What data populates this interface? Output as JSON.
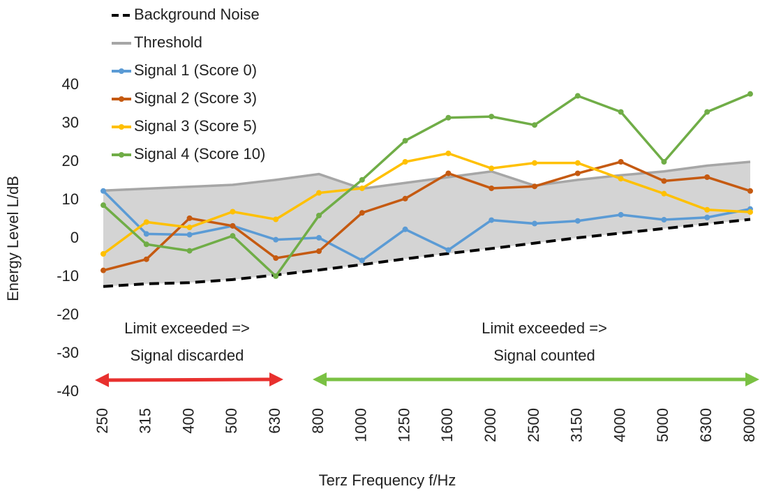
{
  "chart_data": {
    "type": "line",
    "x_label": "Terz Frequency f/Hz",
    "y_label": "Energy Level L/dB",
    "categories": [
      "250",
      "315",
      "400",
      "500",
      "630",
      "800",
      "1000",
      "1250",
      "1600",
      "2000",
      "2500",
      "3150",
      "4000",
      "5000",
      "6300",
      "8000"
    ],
    "ylim": [
      -40,
      40
    ],
    "yticks": [
      -40,
      -30,
      -20,
      -10,
      0,
      10,
      20,
      30,
      40
    ],
    "grid": false,
    "series": [
      {
        "name": "Background Noise",
        "color": "#000000",
        "dashed": true,
        "marker": false,
        "values": [
          -12.5,
          -11.8,
          -11.5,
          -10.7,
          -9.5,
          -8.2,
          -6.8,
          -5.3,
          -3.9,
          -2.6,
          -1.2,
          0.2,
          1.4,
          2.6,
          3.8,
          5
        ]
      },
      {
        "name": "Threshold",
        "color": "#a6a6a6",
        "dashed": false,
        "marker": false,
        "fill": "#d4d4d4",
        "values": [
          12.5,
          13,
          13.5,
          14,
          15.3,
          16.8,
          13,
          14.5,
          16,
          17.5,
          13.8,
          15.3,
          16.5,
          17.5,
          19,
          20
        ]
      },
      {
        "name": "Signal 1 (Score 0)",
        "color": "#5b9bd5",
        "dashed": false,
        "marker": true,
        "values": [
          12.4,
          1.2,
          1,
          3.3,
          -0.3,
          0.2,
          -5.7,
          2.4,
          -3,
          4.8,
          3.9,
          4.6,
          6.2,
          4.9,
          5.5,
          7.7
        ]
      },
      {
        "name": "Signal 2 (Score 3)",
        "color": "#c55a11",
        "dashed": false,
        "marker": true,
        "values": [
          -8.3,
          -5.4,
          5.3,
          3.3,
          -5.1,
          -3.3,
          6.7,
          10.4,
          17,
          13.1,
          13.6,
          17,
          20,
          15,
          16,
          12.4
        ]
      },
      {
        "name": "Signal 3 (Score 5)",
        "color": "#ffc000",
        "dashed": false,
        "marker": true,
        "values": [
          -4,
          4.3,
          2.9,
          7,
          5,
          11.9,
          13.1,
          20,
          22.2,
          18.3,
          19.7,
          19.7,
          15.6,
          11.7,
          7.5,
          6.9
        ]
      },
      {
        "name": "Signal 4 (Score 10)",
        "color": "#70ad47",
        "dashed": false,
        "marker": true,
        "values": [
          8.7,
          -1.5,
          -3.2,
          0.7,
          -9.8,
          6,
          15.3,
          25.5,
          31.5,
          31.8,
          29.6,
          37.2,
          33,
          20,
          33,
          37.7
        ]
      }
    ],
    "annotations": [
      [
        "Limit exceeded =>",
        "Signal discarded"
      ],
      [
        "Limit exceeded =>",
        "Signal counted"
      ]
    ]
  }
}
